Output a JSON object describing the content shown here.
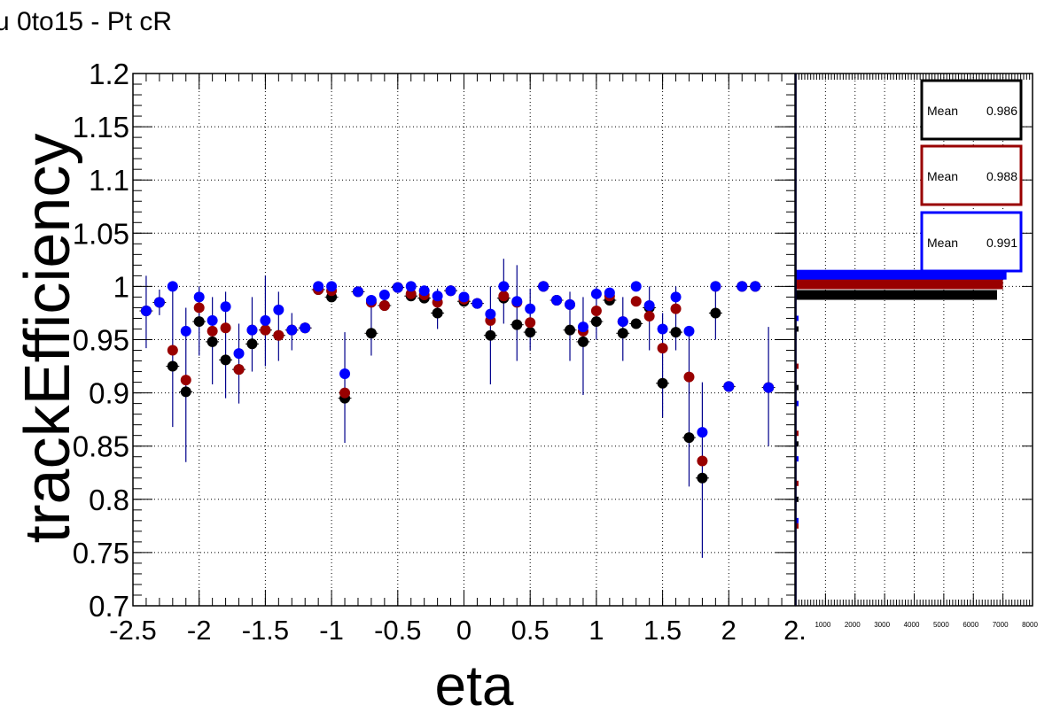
{
  "title": "u 0to15 - Pt cR",
  "chart_data": [
    {
      "type": "scatter",
      "title": "u 0to15 - Pt cR",
      "xlabel": "eta",
      "ylabel": "trackEfficiency",
      "xlim": [
        -2.5,
        2.5
      ],
      "ylim": [
        0.7,
        1.2
      ],
      "x_ticks": [
        "-2.5",
        "-2",
        "-1.5",
        "-1",
        "-0.5",
        "0",
        "0.5",
        "1",
        "1.5",
        "2",
        "2."
      ],
      "y_ticks": [
        "0.7",
        "0.75",
        "0.8",
        "0.85",
        "0.9",
        "0.95",
        "1",
        "1.05",
        "1.1",
        "1.15",
        "1.2"
      ],
      "grid": true,
      "colors": {
        "black": "#000000",
        "red": "#990000",
        "blue": "#0000ff",
        "errbar": "#00008b"
      },
      "x": [
        -2.4,
        -2.3,
        -2.2,
        -2.1,
        -2.0,
        -1.9,
        -1.8,
        -1.7,
        -1.6,
        -1.5,
        -1.4,
        -1.3,
        -1.2,
        -1.1,
        -1.0,
        -0.9,
        -0.8,
        -0.7,
        -0.6,
        -0.5,
        -0.4,
        -0.3,
        -0.2,
        -0.1,
        0.0,
        0.1,
        0.2,
        0.3,
        0.4,
        0.5,
        0.6,
        0.7,
        0.8,
        0.9,
        1.0,
        1.1,
        1.2,
        1.3,
        1.4,
        1.5,
        1.6,
        1.7,
        1.8,
        1.9,
        2.0,
        2.1,
        2.2,
        2.3
      ],
      "series": [
        {
          "color": "black",
          "values": [
            0.977,
            0.985,
            0.925,
            0.901,
            0.967,
            0.948,
            0.931,
            0.922,
            0.946,
            0.959,
            0.954,
            0.959,
            0.961,
            0.997,
            0.99,
            0.895,
            0.995,
            0.956,
            0.982,
            0.999,
            0.991,
            0.989,
            0.975,
            0.996,
            0.986,
            0.984,
            0.954,
            0.989,
            0.964,
            0.957,
            1.0,
            0.987,
            0.959,
            0.948,
            0.967,
            0.987,
            0.956,
            0.965,
            0.98,
            0.909,
            0.957,
            0.858,
            0.82,
            0.975,
            0.906,
            1.0,
            1.0,
            0.905
          ]
        },
        {
          "color": "red",
          "values": [
            0.977,
            0.985,
            0.94,
            0.912,
            0.98,
            0.958,
            0.961,
            0.922,
            0.959,
            0.959,
            0.954,
            0.959,
            0.961,
            0.997,
            0.996,
            0.9,
            0.995,
            0.985,
            0.982,
            0.999,
            0.993,
            0.992,
            0.985,
            0.996,
            0.988,
            0.984,
            0.968,
            0.991,
            0.985,
            0.966,
            1.0,
            0.987,
            0.983,
            0.958,
            0.977,
            0.991,
            0.967,
            0.986,
            0.972,
            0.942,
            0.979,
            0.915,
            0.836,
            1.0,
            0.906,
            1.0,
            1.0,
            0.905
          ]
        },
        {
          "color": "blue",
          "values": [
            0.977,
            0.985,
            1.0,
            0.958,
            0.99,
            0.968,
            0.981,
            0.937,
            0.959,
            0.968,
            0.978,
            0.959,
            0.961,
            1.0,
            1.0,
            0.918,
            0.995,
            0.987,
            0.992,
            0.999,
            1.0,
            0.996,
            0.991,
            0.996,
            0.99,
            0.984,
            0.974,
            1.0,
            0.986,
            0.979,
            1.0,
            0.987,
            0.983,
            0.962,
            0.993,
            0.994,
            0.967,
            1.0,
            0.982,
            0.96,
            0.99,
            0.958,
            0.863,
            1.0,
            0.906,
            1.0,
            1.0,
            0.905
          ]
        }
      ],
      "error_bars": [
        {
          "x": -2.4,
          "low": 0.942,
          "high": 1.01
        },
        {
          "x": -2.3,
          "low": 0.973,
          "high": 0.997
        },
        {
          "x": -2.2,
          "low": 0.868,
          "high": 1.0
        },
        {
          "x": -2.1,
          "low": 0.835,
          "high": 0.98
        },
        {
          "x": -2.0,
          "low": 0.935,
          "high": 1.0
        },
        {
          "x": -1.9,
          "low": 0.908,
          "high": 0.99
        },
        {
          "x": -1.8,
          "low": 0.895,
          "high": 0.995
        },
        {
          "x": -1.7,
          "low": 0.89,
          "high": 0.965
        },
        {
          "x": -1.6,
          "low": 0.92,
          "high": 0.99
        },
        {
          "x": -1.5,
          "low": 0.925,
          "high": 1.01
        },
        {
          "x": -1.4,
          "low": 0.93,
          "high": 0.995
        },
        {
          "x": -1.3,
          "low": 0.94,
          "high": 0.975
        },
        {
          "x": -0.9,
          "low": 0.853,
          "high": 0.957
        },
        {
          "x": -0.7,
          "low": 0.935,
          "high": 0.99
        },
        {
          "x": -0.2,
          "low": 0.96,
          "high": 0.998
        },
        {
          "x": 0.2,
          "low": 0.908,
          "high": 1.0
        },
        {
          "x": 0.3,
          "low": 0.965,
          "high": 1.026
        },
        {
          "x": 0.4,
          "low": 0.93,
          "high": 1.02
        },
        {
          "x": 0.5,
          "low": 0.94,
          "high": 0.998
        },
        {
          "x": 0.8,
          "low": 0.93,
          "high": 0.995
        },
        {
          "x": 0.9,
          "low": 0.898,
          "high": 0.99
        },
        {
          "x": 1.0,
          "low": 0.95,
          "high": 1.0
        },
        {
          "x": 1.2,
          "low": 0.93,
          "high": 0.99
        },
        {
          "x": 1.4,
          "low": 0.94,
          "high": 1.0
        },
        {
          "x": 1.5,
          "low": 0.877,
          "high": 0.975
        },
        {
          "x": 1.6,
          "low": 0.94,
          "high": 1.0
        },
        {
          "x": 1.7,
          "low": 0.812,
          "high": 0.96
        },
        {
          "x": 1.8,
          "low": 0.745,
          "high": 0.91
        },
        {
          "x": 1.9,
          "low": 0.95,
          "high": 1.0
        },
        {
          "x": 2.3,
          "low": 0.85,
          "high": 0.962
        }
      ]
    },
    {
      "type": "bar",
      "orientation": "horizontal",
      "xlim": [
        0,
        8000
      ],
      "ylim": [
        0.7,
        1.2
      ],
      "x_ticks": [
        "1000",
        "2000",
        "3000",
        "4000",
        "5000",
        "6000",
        "7000",
        "8000"
      ],
      "series": [
        {
          "color": "black",
          "y": [
            0.992
          ],
          "values": [
            6800
          ]
        },
        {
          "color": "red",
          "y": [
            1.002
          ],
          "values": [
            7000
          ]
        },
        {
          "color": "blue",
          "y": [
            1.011
          ],
          "values": [
            7120
          ]
        }
      ],
      "stats": [
        {
          "color": "black",
          "label": "Mean",
          "value": "0.986"
        },
        {
          "color": "red",
          "label": "Mean",
          "value": "0.988"
        },
        {
          "color": "blue",
          "label": "Mean",
          "value": "0.991"
        }
      ]
    }
  ]
}
